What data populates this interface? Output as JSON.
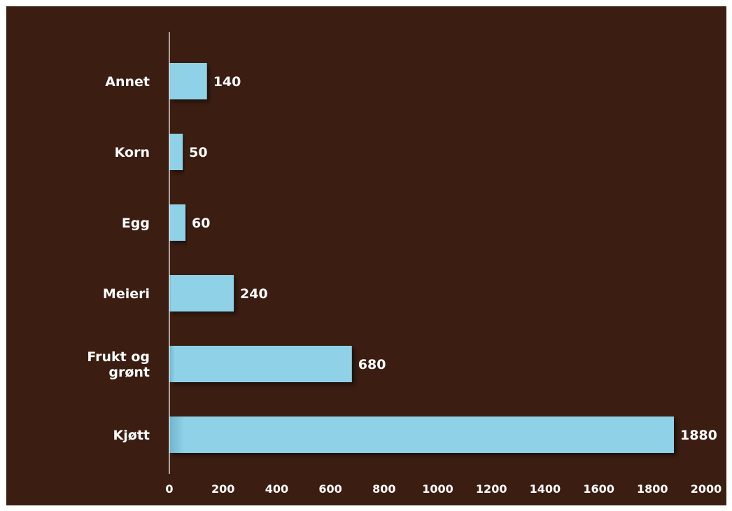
{
  "chart_data": {
    "type": "bar",
    "orientation": "horizontal",
    "categories": [
      "Annet",
      "Korn",
      "Egg",
      "Meieri",
      "Frukt og grønt",
      "Kjøtt"
    ],
    "category_lines": [
      [
        "Annet"
      ],
      [
        "Korn"
      ],
      [
        "Egg"
      ],
      [
        "Meieri"
      ],
      [
        "Frukt og",
        "grønt"
      ],
      [
        "Kjøtt"
      ]
    ],
    "values": [
      140,
      50,
      60,
      240,
      680,
      1880
    ],
    "value_labels": [
      "140",
      "50",
      "60",
      "240",
      "680",
      "1880"
    ],
    "xlim": [
      0,
      2000
    ],
    "xticks": [
      0,
      200,
      400,
      600,
      800,
      1000,
      1200,
      1400,
      1600,
      1800,
      2000
    ],
    "tick_labels": [
      "0",
      "200",
      "400",
      "600",
      "800",
      "1000",
      "1200",
      "1400",
      "1600",
      "1800",
      "2000"
    ],
    "grid": false,
    "title": "",
    "xlabel": "",
    "ylabel": ""
  },
  "colors": {
    "background": "#3b1d12",
    "bar": "#8fd2e8",
    "text": "#ffffff",
    "axis": "#ffffff"
  }
}
